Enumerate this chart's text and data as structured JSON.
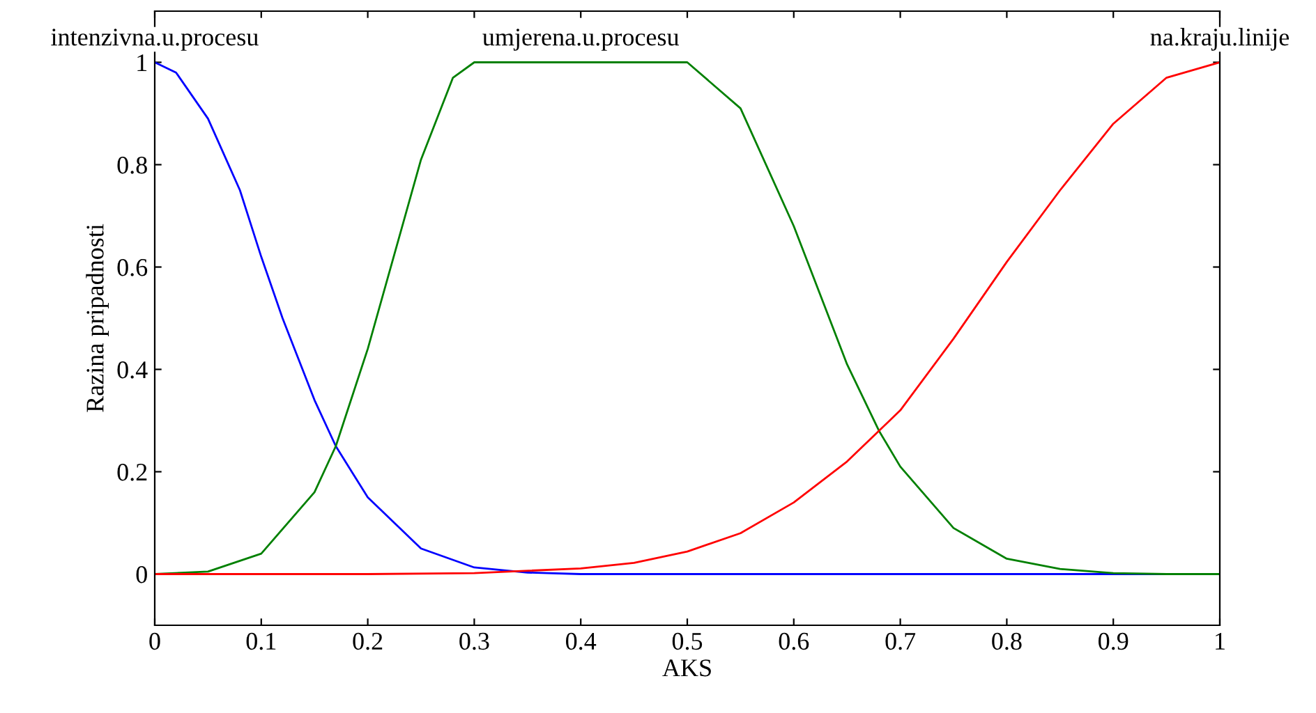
{
  "chart_data": {
    "type": "line",
    "xlabel": "AKS",
    "ylabel": "Razina pripadnosti",
    "xlim": [
      0,
      1
    ],
    "ylim": [
      -0.1,
      1.1
    ],
    "xticks": [
      0,
      0.1,
      0.2,
      0.3,
      0.4,
      0.5,
      0.6,
      0.7,
      0.8,
      0.9,
      1
    ],
    "yticks": [
      0,
      0.2,
      0.4,
      0.6,
      0.8,
      1
    ],
    "grid": false,
    "legend": false,
    "marker": "none",
    "line_style": "solid",
    "series": [
      {
        "name": "intenzivna.u.procesu",
        "color": "#0000ff",
        "x": [
          0,
          0.02,
          0.05,
          0.08,
          0.1,
          0.12,
          0.15,
          0.17,
          0.2,
          0.25,
          0.3,
          0.35,
          0.4,
          0.6,
          0.8,
          1
        ],
        "values": [
          1,
          0.98,
          0.89,
          0.75,
          0.62,
          0.5,
          0.34,
          0.25,
          0.15,
          0.05,
          0.013,
          0.003,
          0,
          0,
          0,
          0
        ]
      },
      {
        "name": "umjerena.u.procesu",
        "color": "#008000",
        "x": [
          0,
          0.05,
          0.1,
          0.15,
          0.17,
          0.2,
          0.25,
          0.28,
          0.3,
          0.35,
          0.4,
          0.45,
          0.5,
          0.55,
          0.6,
          0.65,
          0.68,
          0.7,
          0.75,
          0.8,
          0.85,
          0.9,
          0.95,
          1
        ],
        "values": [
          0,
          0.005,
          0.04,
          0.16,
          0.25,
          0.44,
          0.81,
          0.97,
          1,
          1,
          1,
          1,
          1,
          0.91,
          0.68,
          0.41,
          0.28,
          0.21,
          0.09,
          0.03,
          0.01,
          0.002,
          0,
          0
        ]
      },
      {
        "name": "na.kraju.linije",
        "color": "#ff0000",
        "x": [
          0,
          0.2,
          0.3,
          0.4,
          0.45,
          0.5,
          0.55,
          0.6,
          0.65,
          0.68,
          0.7,
          0.75,
          0.8,
          0.85,
          0.9,
          0.95,
          1
        ],
        "values": [
          0,
          0,
          0.002,
          0.011,
          0.022,
          0.044,
          0.08,
          0.14,
          0.22,
          0.28,
          0.32,
          0.46,
          0.61,
          0.75,
          0.88,
          0.97,
          1
        ]
      }
    ]
  }
}
